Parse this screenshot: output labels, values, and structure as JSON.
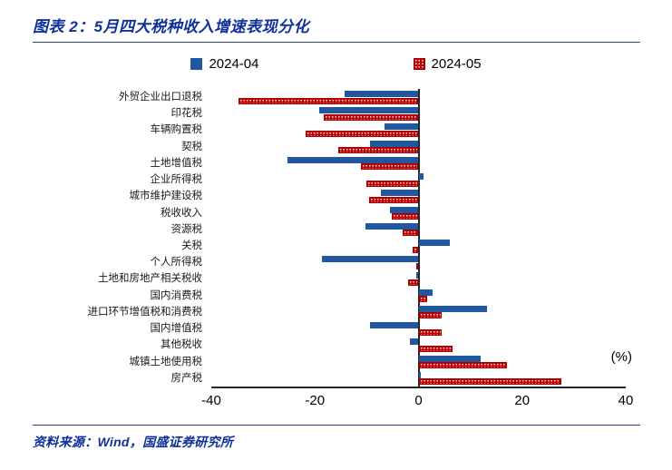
{
  "title": "图表 2：5月四大税种收入增速表现分化",
  "source": "资料来源：Wind，国盛证券研究所",
  "colors": {
    "bar_2024_04": "#2057a0",
    "bar_2024_05": "#c00000",
    "title_text": "#10309a",
    "divider": "#27408b",
    "axis": "#262626"
  },
  "chart_data": {
    "type": "bar",
    "orientation": "horizontal",
    "title": "5月四大税种收入增速表现分化",
    "unit_label": "(%)",
    "xlabel": "",
    "ylabel": "",
    "xlim": [
      -40,
      40
    ],
    "xticks": [
      -40,
      -20,
      0,
      20,
      40
    ],
    "grid": false,
    "legend_position": "top",
    "categories": [
      "外贸企业出口退税",
      "印花税",
      "车辆购置税",
      "契税",
      "土地增值税",
      "企业所得税",
      "城市维护建设税",
      "税收收入",
      "资源税",
      "关税",
      "个人所得税",
      "土地和房地产相关税收",
      "国内消费税",
      "进口环节增值税和消费税",
      "国内增值税",
      "其他税收",
      "城镇土地使用税",
      "房产税"
    ],
    "series": [
      {
        "name": "2024-04",
        "color": "#2057a0",
        "pattern": "solid",
        "values": [
          -14.3,
          -19.2,
          -6.5,
          -9.4,
          -25.3,
          1.0,
          -7.3,
          -5.6,
          -10.3,
          6.1,
          -18.7,
          -0.5,
          2.8,
          13.3,
          -9.4,
          -1.7,
          12.0,
          0.5
        ]
      },
      {
        "name": "2024-05",
        "color": "#c00000",
        "pattern": "dotted",
        "values": [
          -34.7,
          -18.3,
          -21.8,
          -15.5,
          -11.2,
          -10.1,
          -9.6,
          -5.2,
          -3.0,
          -1.2,
          -0.5,
          -2.1,
          1.7,
          4.4,
          4.4,
          6.6,
          17.1,
          27.6
        ]
      }
    ]
  }
}
